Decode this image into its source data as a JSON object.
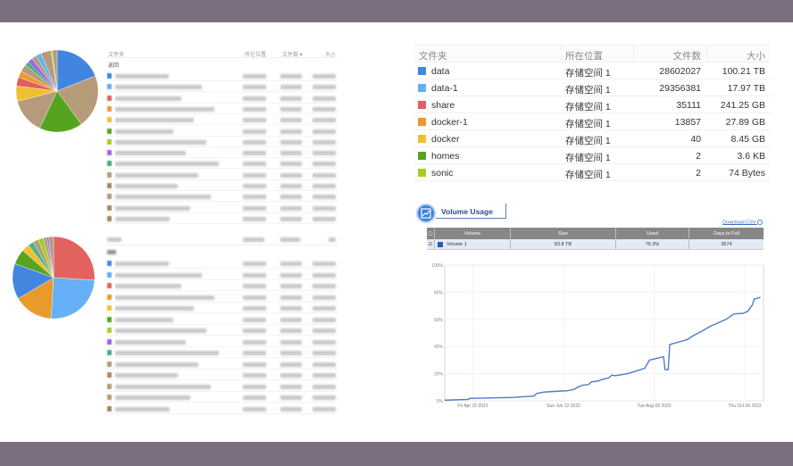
{
  "colors": {
    "frame": "#7a6e80",
    "accent": "#3f82e0",
    "line": "#4f7ac9"
  },
  "pie_top": {
    "slices": [
      {
        "color": "#4285e0",
        "pct": 19
      },
      {
        "color": "#b59b7a",
        "pct": 21
      },
      {
        "color": "#55a31f",
        "pct": 17
      },
      {
        "color": "#b59b7a",
        "pct": 14
      },
      {
        "color": "#f0bf2f",
        "pct": 6
      },
      {
        "color": "#e25f5f",
        "pct": 3.5
      },
      {
        "color": "#ec9a28",
        "pct": 2.5
      },
      {
        "color": "#b59b7a",
        "pct": 3
      },
      {
        "color": "#44b07c",
        "pct": 1.5
      },
      {
        "color": "#9a63f0",
        "pct": 2
      },
      {
        "color": "#b59b7a",
        "pct": 2
      },
      {
        "color": "#63aef5",
        "pct": 2
      },
      {
        "color": "#b59b7a",
        "pct": 4
      },
      {
        "color": "#a3cc26",
        "pct": 0.6
      },
      {
        "color": "#b59b7a",
        "pct": 1.9
      }
    ]
  },
  "pie_bottom": {
    "slices": [
      {
        "color": "#e2625f",
        "pct": 26
      },
      {
        "color": "#65b0f6",
        "pct": 25
      },
      {
        "color": "#e89a2c",
        "pct": 15.5
      },
      {
        "color": "#4286e0",
        "pct": 14
      },
      {
        "color": "#55a31f",
        "pct": 6
      },
      {
        "color": "#f0bf2f",
        "pct": 3
      },
      {
        "color": "#48b684",
        "pct": 2.2
      },
      {
        "color": "#b59b7a",
        "pct": 2.2
      },
      {
        "color": "#a3cc26",
        "pct": 2
      },
      {
        "color": "#b59b7a",
        "pct": 1.4
      },
      {
        "color": "#9a63f0",
        "pct": 0.8
      },
      {
        "color": "#b59b7a",
        "pct": 1.9
      }
    ]
  },
  "left_table_top": {
    "headers": [
      "文件夹",
      "所在位置",
      "文件数 ▾",
      "大小"
    ],
    "back": "返回",
    "row_colors": [
      "#4285e0",
      "#63aef5",
      "#e25f5f",
      "#ec9a28",
      "#f0bf2f",
      "#55a31f",
      "#a3cc26",
      "#9a63f0",
      "#44b07c",
      "#b59b7a",
      "#a8865e",
      "#b59b7a",
      "#a8865e",
      "#a8865e"
    ]
  },
  "left_table_bottom": {
    "row_colors": [
      "#4285e0",
      "#63aef5",
      "#e25f5f",
      "#ec9a28",
      "#f0bf2f",
      "#55a31f",
      "#a3cc26",
      "#9a63f0",
      "#44b07c",
      "#b59b7a",
      "#a8865e",
      "#b59b7a",
      "#b59b7a",
      "#a8865e"
    ]
  },
  "folder_table": {
    "headers": [
      "文件夹",
      "所在位置",
      "文件数",
      "大小"
    ],
    "rows": [
      {
        "name": "data",
        "color": "#4285e0",
        "location": "存储空间 1",
        "files": "28602027",
        "size": "100.21 TB"
      },
      {
        "name": "data-1",
        "color": "#63aef5",
        "location": "存储空间 1",
        "files": "29356381",
        "size": "17.97 TB"
      },
      {
        "name": "share",
        "color": "#e25f5f",
        "location": "存储空间 1",
        "files": "35111",
        "size": "241.25 GB"
      },
      {
        "name": "docker-1",
        "color": "#ec9a28",
        "location": "存储空间 1",
        "files": "13857",
        "size": "27.89 GB"
      },
      {
        "name": "docker",
        "color": "#f0bf2f",
        "location": "存储空间 1",
        "files": "40",
        "size": "8.45 GB"
      },
      {
        "name": "homes",
        "color": "#55a31f",
        "location": "存储空间 1",
        "files": "2",
        "size": "3.6 KB"
      },
      {
        "name": "sonic",
        "color": "#a3cc26",
        "location": "存储空间 1",
        "files": "2",
        "size": "74 Bytes"
      }
    ]
  },
  "volume_usage": {
    "title": "Volume Usage",
    "download": "Download CSV",
    "headers": [
      "Volume",
      "Size",
      "Used",
      "Days to Full"
    ],
    "row": {
      "volume": "Volume 1",
      "size": "83.8 TB",
      "used": "76.3%",
      "days": "3574",
      "checked": true
    }
  },
  "chart_data": {
    "type": "line",
    "xlabel": "",
    "ylabel": "",
    "x_range": [
      "2022-03-28",
      "2022-10-18"
    ],
    "ylim": [
      0,
      100
    ],
    "grid": true,
    "y_ticks": [
      "0%",
      "20%",
      "40%",
      "60%",
      "80%",
      "100%"
    ],
    "x_ticks": [
      {
        "date": "2022-04-15",
        "label": "Fri Apr 15 2022"
      },
      {
        "date": "2022-06-12",
        "label": "Sun Jun 12 2022"
      },
      {
        "date": "2022-08-09",
        "label": "Tue Aug 09 2022"
      },
      {
        "date": "2022-10-06",
        "label": "Thu Oct 06 2022"
      }
    ],
    "series": [
      {
        "points": [
          [
            "2022-03-28",
            0.5
          ],
          [
            "2022-04-12",
            1
          ],
          [
            "2022-04-13",
            1.8
          ],
          [
            "2022-05-11",
            2.5
          ],
          [
            "2022-05-17",
            3
          ],
          [
            "2022-05-24",
            3.5
          ],
          [
            "2022-05-26",
            5.5
          ],
          [
            "2022-05-31",
            6.5
          ],
          [
            "2022-06-15",
            7.5
          ],
          [
            "2022-06-19",
            8.5
          ],
          [
            "2022-06-21",
            10
          ],
          [
            "2022-06-24",
            11.5
          ],
          [
            "2022-06-28",
            12
          ],
          [
            "2022-06-30",
            14
          ],
          [
            "2022-07-04",
            14.5
          ],
          [
            "2022-07-06",
            15.5
          ],
          [
            "2022-07-11",
            17
          ],
          [
            "2022-07-13",
            19
          ],
          [
            "2022-07-15",
            18.5
          ],
          [
            "2022-07-23",
            20
          ],
          [
            "2022-07-30",
            22.5
          ],
          [
            "2022-08-03",
            24
          ],
          [
            "2022-08-06",
            30
          ],
          [
            "2022-08-15",
            32.5
          ],
          [
            "2022-08-16",
            23
          ],
          [
            "2022-08-18",
            23
          ],
          [
            "2022-08-19",
            41.5
          ],
          [
            "2022-08-22",
            42.5
          ],
          [
            "2022-08-30",
            45
          ],
          [
            "2022-09-03",
            48
          ],
          [
            "2022-09-08",
            51
          ],
          [
            "2022-09-14",
            55
          ],
          [
            "2022-09-18",
            57
          ],
          [
            "2022-09-24",
            60
          ],
          [
            "2022-09-29",
            64
          ],
          [
            "2022-10-05",
            64.5
          ],
          [
            "2022-10-08",
            66
          ],
          [
            "2022-10-11",
            71
          ],
          [
            "2022-10-12",
            75
          ],
          [
            "2022-10-16",
            76.3
          ]
        ]
      }
    ]
  }
}
